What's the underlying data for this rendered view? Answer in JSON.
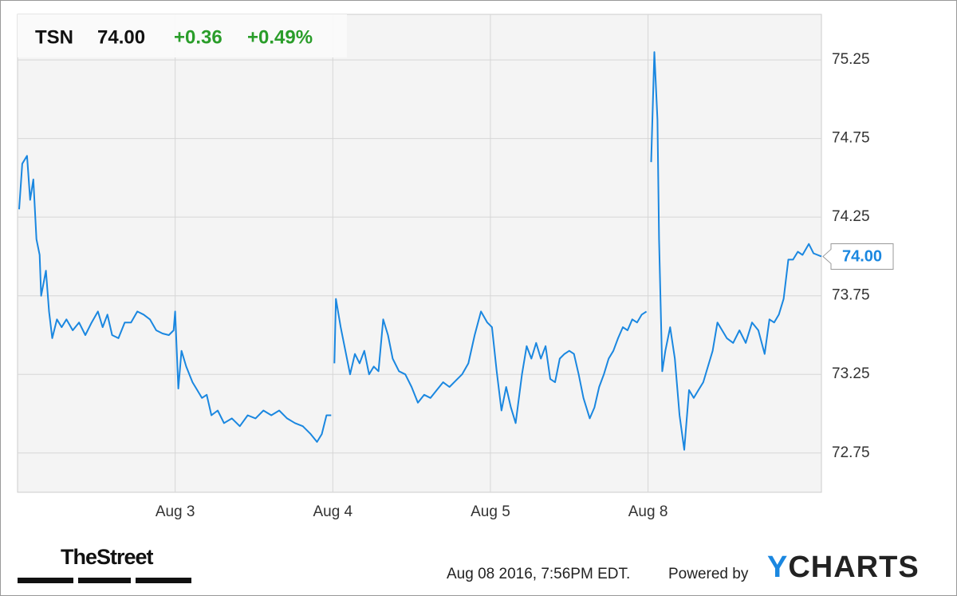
{
  "chart_data": {
    "type": "line",
    "header": {
      "symbol": "TSN",
      "price": "74.00",
      "change": "+0.36",
      "change_pct": "+0.49%"
    },
    "last_label": "74.00",
    "color": "#1a87e0",
    "grid": true,
    "xlim": [
      0,
      5.1
    ],
    "xticks": [
      {
        "value": 1,
        "label": "Aug 3"
      },
      {
        "value": 2,
        "label": "Aug 4"
      },
      {
        "value": 3,
        "label": "Aug 5"
      },
      {
        "value": 4,
        "label": "Aug 8"
      }
    ],
    "ylim": [
      72.5,
      75.54
    ],
    "yticks": [
      72.75,
      73.25,
      73.75,
      74.25,
      74.75,
      75.25
    ],
    "x": [
      0.01,
      0.03,
      0.06,
      0.08,
      0.1,
      0.12,
      0.14,
      0.15,
      0.18,
      0.2,
      0.22,
      0.25,
      0.28,
      0.31,
      0.35,
      0.39,
      0.43,
      0.47,
      0.51,
      0.54,
      0.57,
      0.6,
      0.64,
      0.68,
      0.72,
      0.76,
      0.8,
      0.84,
      0.88,
      0.92,
      0.96,
      0.99,
      1.0,
      1.02,
      1.04,
      1.07,
      1.11,
      1.14,
      1.17,
      1.2,
      1.23,
      1.27,
      1.31,
      1.36,
      1.41,
      1.46,
      1.51,
      1.56,
      1.61,
      1.66,
      1.71,
      1.76,
      1.81,
      1.86,
      1.9,
      1.93,
      1.96,
      1.99,
      2.0,
      2.01,
      2.02,
      2.05,
      2.08,
      2.11,
      2.14,
      2.17,
      2.2,
      2.23,
      2.26,
      2.29,
      2.32,
      2.35,
      2.38,
      2.42,
      2.46,
      2.5,
      2.54,
      2.58,
      2.62,
      2.66,
      2.7,
      2.74,
      2.78,
      2.82,
      2.86,
      2.9,
      2.94,
      2.98,
      3.01,
      3.04,
      3.07,
      3.1,
      3.13,
      3.16,
      3.2,
      3.23,
      3.26,
      3.29,
      3.32,
      3.35,
      3.38,
      3.41,
      3.44,
      3.47,
      3.5,
      3.53,
      3.56,
      3.59,
      3.63,
      3.66,
      3.69,
      3.72,
      3.75,
      3.78,
      3.81,
      3.84,
      3.87,
      3.9,
      3.93,
      3.96,
      3.99,
      4.0,
      4.02,
      4.04,
      4.06,
      4.07,
      4.09,
      4.11,
      4.14,
      4.17,
      4.2,
      4.23,
      4.26,
      4.29,
      4.32,
      4.35,
      4.38,
      4.41,
      4.44,
      4.47,
      4.5,
      4.54,
      4.58,
      4.62,
      4.66,
      4.7,
      4.74,
      4.77,
      4.8,
      4.83,
      4.86,
      4.89,
      4.92,
      4.95,
      4.98,
      5.02,
      5.05,
      5.1
    ],
    "values": [
      74.3,
      74.59,
      74.64,
      74.36,
      74.49,
      74.11,
      74.01,
      73.75,
      73.91,
      73.65,
      73.48,
      73.6,
      73.55,
      73.6,
      73.53,
      73.58,
      73.5,
      73.58,
      73.65,
      73.55,
      73.63,
      73.5,
      73.48,
      73.58,
      73.58,
      73.65,
      73.63,
      73.6,
      73.53,
      73.51,
      73.5,
      73.53,
      73.65,
      73.16,
      73.4,
      73.3,
      73.2,
      73.15,
      73.1,
      73.12,
      72.99,
      73.02,
      72.94,
      72.97,
      72.92,
      72.99,
      72.97,
      73.02,
      72.99,
      73.02,
      72.97,
      72.94,
      72.92,
      72.87,
      72.82,
      72.87,
      72.99,
      72.99,
      null,
      73.32,
      73.73,
      73.55,
      73.4,
      73.25,
      73.38,
      73.32,
      73.4,
      73.25,
      73.3,
      73.27,
      73.6,
      73.5,
      73.35,
      73.27,
      73.25,
      73.17,
      73.07,
      73.12,
      73.1,
      73.15,
      73.2,
      73.17,
      73.21,
      73.25,
      73.32,
      73.5,
      73.65,
      73.58,
      73.55,
      73.27,
      73.02,
      73.17,
      73.04,
      72.94,
      73.25,
      73.43,
      73.35,
      73.45,
      73.35,
      73.43,
      73.22,
      73.2,
      73.35,
      73.38,
      73.4,
      73.38,
      73.25,
      73.1,
      72.97,
      73.04,
      73.17,
      73.25,
      73.35,
      73.4,
      73.48,
      73.55,
      73.53,
      73.6,
      73.58,
      73.63,
      73.65,
      null,
      74.6,
      75.3,
      74.87,
      74.11,
      73.27,
      73.4,
      73.55,
      73.35,
      72.99,
      72.77,
      73.15,
      73.1,
      73.15,
      73.2,
      73.3,
      73.4,
      73.58,
      73.53,
      73.48,
      73.45,
      73.53,
      73.45,
      73.58,
      73.53,
      73.38,
      73.6,
      73.58,
      73.63,
      73.73,
      73.98,
      73.98,
      74.03,
      74.01,
      74.08,
      74.02,
      74.0
    ]
  },
  "footer": {
    "logo": "TheStreet",
    "timestamp": "Aug 08 2016, 7:56PM EDT.",
    "powered_by": "Powered by",
    "brand": "YCHARTS"
  }
}
